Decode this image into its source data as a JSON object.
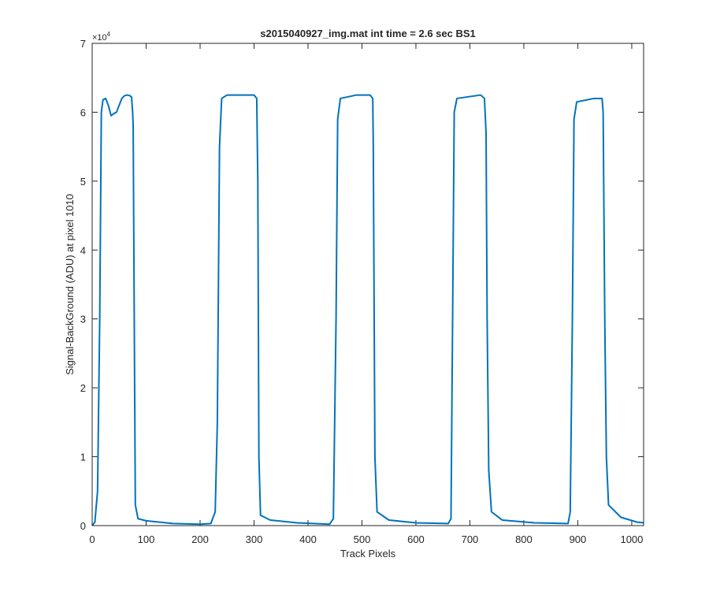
{
  "chart_data": {
    "type": "line",
    "title": "s2015040927_img.mat int time = 2.6 sec   BS1",
    "x_label": "Track Pixels",
    "y_label": "Signal-BackGround (ADU) at pixel 1010",
    "y_multiplier": {
      "base": "×10",
      "exponent": "4"
    },
    "xlim": [
      0,
      1022
    ],
    "xticks": [
      0,
      100,
      200,
      300,
      400,
      500,
      600,
      700,
      800,
      900,
      1000
    ],
    "ylim": [
      0,
      7
    ],
    "yticks": [
      0,
      1,
      2,
      3,
      4,
      5,
      6,
      7
    ],
    "grid": false,
    "series": [
      {
        "color": "#0072bd",
        "x": [
          0,
          5,
          10,
          14,
          17,
          20,
          25,
          30,
          35,
          40,
          45,
          50,
          55,
          60,
          65,
          70,
          73,
          75,
          76,
          78,
          80,
          85,
          100,
          150,
          200,
          220,
          228,
          232,
          236,
          240,
          250,
          300,
          305,
          307,
          309,
          312,
          330,
          380,
          440,
          447,
          452,
          455,
          460,
          490,
          515,
          520,
          521,
          524,
          528,
          550,
          600,
          660,
          665,
          668,
          671,
          676,
          720,
          727,
          730,
          732,
          735,
          740,
          760,
          820,
          882,
          886,
          890,
          893,
          898,
          930,
          945,
          947,
          950,
          953,
          957,
          980,
          1010,
          1022
        ],
        "values": [
          0,
          0.05,
          0.5,
          3,
          6.0,
          6.18,
          6.2,
          6.1,
          5.95,
          5.98,
          6.0,
          6.1,
          6.2,
          6.24,
          6.25,
          6.24,
          6.22,
          6.0,
          5.8,
          3,
          0.3,
          0.1,
          0.07,
          0.03,
          0.02,
          0.03,
          0.2,
          1.5,
          5.5,
          6.2,
          6.25,
          6.25,
          6.2,
          5.0,
          1,
          0.15,
          0.08,
          0.04,
          0.02,
          0.1,
          3,
          5.9,
          6.2,
          6.25,
          6.25,
          6.2,
          5.5,
          1,
          0.2,
          0.08,
          0.04,
          0.03,
          0.1,
          3,
          6.0,
          6.2,
          6.25,
          6.2,
          5.7,
          3,
          0.8,
          0.2,
          0.08,
          0.04,
          0.03,
          0.2,
          3,
          5.9,
          6.15,
          6.2,
          6.2,
          6.0,
          3,
          1,
          0.3,
          0.12,
          0.05,
          0.04
        ]
      }
    ]
  }
}
